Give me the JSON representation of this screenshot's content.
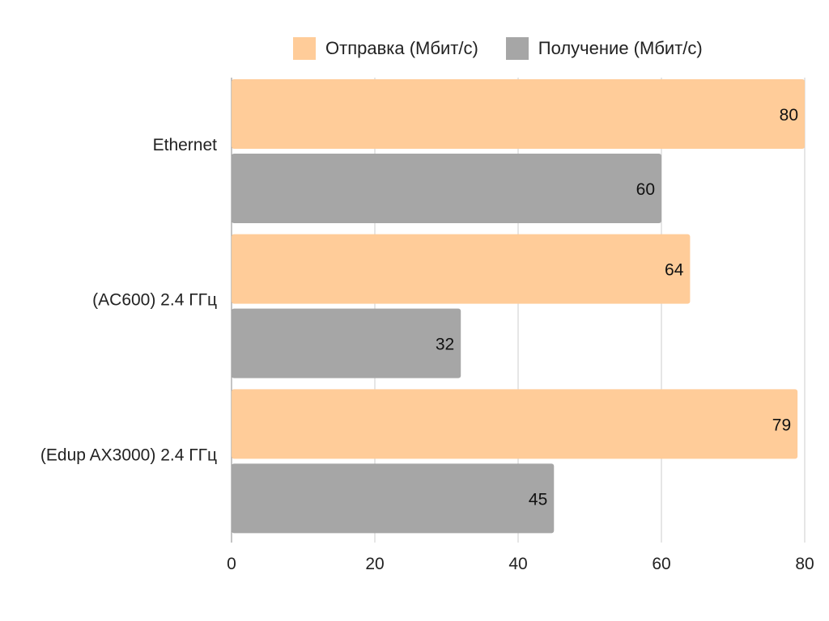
{
  "chart_data": {
    "type": "bar",
    "orientation": "horizontal",
    "categories": [
      "Ethernet",
      "(AC600) 2.4 ГГц",
      "(Edup AX3000) 2.4 ГГц"
    ],
    "series": [
      {
        "name": "Отправка (Мбит/с)",
        "color": "#FFCC99",
        "values": [
          80,
          64,
          79
        ]
      },
      {
        "name": "Получение (Мбит/с)",
        "color": "#A6A6A6",
        "values": [
          60,
          32,
          45
        ]
      }
    ],
    "xlim": [
      0,
      80
    ],
    "xticks": [
      "0",
      "20",
      "40",
      "60",
      "80"
    ],
    "grid": true,
    "data_labels": true,
    "legend_position": "top"
  }
}
